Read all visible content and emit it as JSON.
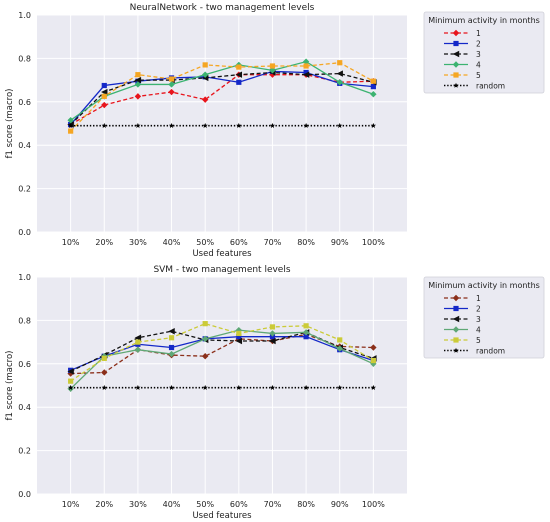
{
  "chart_data": [
    {
      "type": "line",
      "title": "NeuralNetwork - two management levels",
      "xlabel": "Used features",
      "ylabel": "f1 score (macro)",
      "categories": [
        "10%",
        "20%",
        "30%",
        "40%",
        "50%",
        "60%",
        "70%",
        "80%",
        "90%",
        "100%"
      ],
      "ylim": [
        0.0,
        1.0
      ],
      "yticks": [
        "0.0",
        "0.2",
        "0.4",
        "0.6",
        "0.8",
        "1.0"
      ],
      "grid": true,
      "legend_position": "outside-right",
      "legend_title": "Minimum activity in months",
      "series": [
        {
          "name": "1",
          "color": "#e8141c",
          "dash": "dashed",
          "marker": "diamond",
          "values": [
            0.495,
            0.585,
            0.625,
            0.645,
            0.61,
            0.725,
            0.725,
            0.725,
            0.69,
            0.695
          ]
        },
        {
          "name": "2",
          "color": "#1428c8",
          "dash": "solid",
          "marker": "square",
          "values": [
            0.495,
            0.675,
            0.695,
            0.71,
            0.715,
            0.69,
            0.74,
            0.735,
            0.685,
            0.67
          ]
        },
        {
          "name": "3",
          "color": "#111111",
          "dash": "dashed",
          "marker": "triangle-left",
          "values": [
            0.495,
            0.645,
            0.7,
            0.7,
            0.71,
            0.725,
            0.735,
            0.725,
            0.73,
            0.69
          ]
        },
        {
          "name": "4",
          "color": "#3cb371",
          "dash": "solid",
          "marker": "diamond",
          "values": [
            0.515,
            0.625,
            0.68,
            0.68,
            0.725,
            0.77,
            0.745,
            0.785,
            0.69,
            0.635
          ]
        },
        {
          "name": "5",
          "color": "#f5a623",
          "dash": "dashed",
          "marker": "square",
          "values": [
            0.465,
            0.625,
            0.725,
            0.705,
            0.77,
            0.76,
            0.765,
            0.765,
            0.78,
            0.695
          ]
        },
        {
          "name": "random",
          "color": "#000000",
          "dash": "dotted",
          "marker": "star",
          "values": [
            0.49,
            0.49,
            0.49,
            0.49,
            0.49,
            0.49,
            0.49,
            0.49,
            0.49,
            0.49
          ]
        }
      ]
    },
    {
      "type": "line",
      "title": "SVM - two management levels",
      "xlabel": "Used features",
      "ylabel": "f1 score (macro)",
      "categories": [
        "10%",
        "20%",
        "30%",
        "40%",
        "50%",
        "60%",
        "70%",
        "80%",
        "90%",
        "100%"
      ],
      "ylim": [
        0.0,
        1.0
      ],
      "yticks": [
        "0.0",
        "0.2",
        "0.4",
        "0.6",
        "0.8",
        "1.0"
      ],
      "grid": true,
      "legend_position": "outside-right",
      "legend_title": "Minimum activity in months",
      "series": [
        {
          "name": "1",
          "color": "#8b2f1a",
          "dash": "dashed",
          "marker": "diamond",
          "values": [
            0.555,
            0.56,
            0.665,
            0.64,
            0.635,
            0.715,
            0.705,
            0.735,
            0.68,
            0.675
          ]
        },
        {
          "name": "2",
          "color": "#1428c8",
          "dash": "solid",
          "marker": "square",
          "values": [
            0.57,
            0.635,
            0.69,
            0.675,
            0.715,
            0.725,
            0.725,
            0.725,
            0.665,
            0.615
          ]
        },
        {
          "name": "3",
          "color": "#111111",
          "dash": "dashed",
          "marker": "triangle-left",
          "values": [
            0.565,
            0.64,
            0.72,
            0.75,
            0.71,
            0.705,
            0.705,
            0.745,
            0.675,
            0.625
          ]
        },
        {
          "name": "4",
          "color": "#5fa876",
          "dash": "solid",
          "marker": "diamond",
          "values": [
            0.485,
            0.635,
            0.665,
            0.645,
            0.715,
            0.755,
            0.74,
            0.745,
            0.67,
            0.6
          ]
        },
        {
          "name": "5",
          "color": "#cbcb38",
          "dash": "dashed",
          "marker": "square",
          "values": [
            0.52,
            0.625,
            0.7,
            0.72,
            0.785,
            0.74,
            0.77,
            0.775,
            0.71,
            0.615
          ]
        },
        {
          "name": "random",
          "color": "#000000",
          "dash": "dotted",
          "marker": "star",
          "values": [
            0.49,
            0.49,
            0.49,
            0.49,
            0.49,
            0.49,
            0.49,
            0.49,
            0.49,
            0.49
          ]
        }
      ]
    }
  ]
}
